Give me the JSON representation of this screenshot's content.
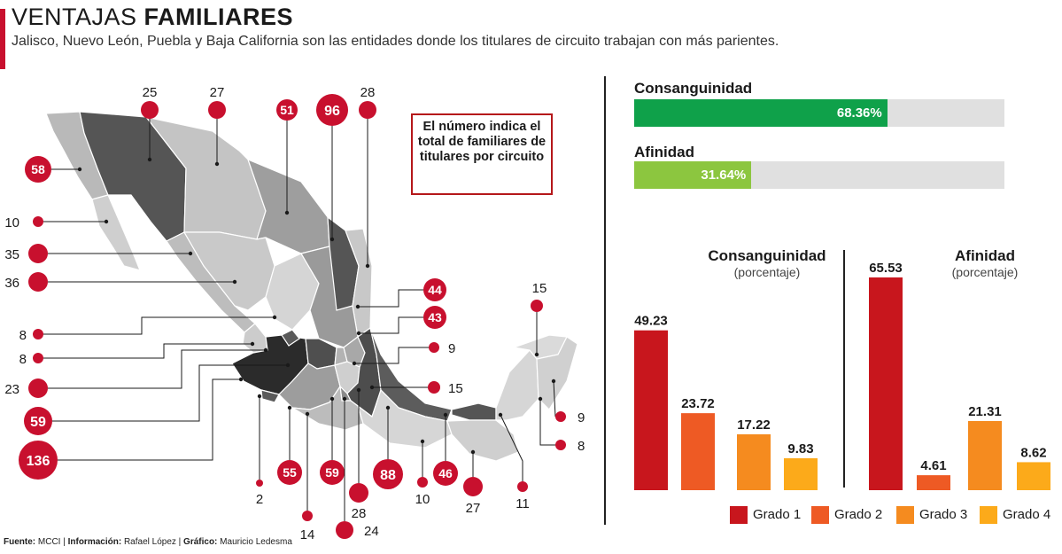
{
  "header": {
    "title_light": "VENTAJAS",
    "title_bold": "FAMILIARES",
    "subtitle": "Jalisco, Nuevo León, Puebla y Baja California son las entidades donde los titulares de circuito trabajan con más parientes."
  },
  "map": {
    "note": "El número indica el total de familiares de titulares por circuito",
    "marker_color": "#c8102e",
    "markers": [
      {
        "value": "25"
      },
      {
        "value": "27"
      },
      {
        "value": "51"
      },
      {
        "value": "96"
      },
      {
        "value": "28"
      },
      {
        "value": "58"
      },
      {
        "value": "10"
      },
      {
        "value": "35"
      },
      {
        "value": "36"
      },
      {
        "value": "8"
      },
      {
        "value": "8"
      },
      {
        "value": "23"
      },
      {
        "value": "59"
      },
      {
        "value": "136"
      },
      {
        "value": "2"
      },
      {
        "value": "55"
      },
      {
        "value": "14"
      },
      {
        "value": "59"
      },
      {
        "value": "28"
      },
      {
        "value": "24"
      },
      {
        "value": "88"
      },
      {
        "value": "10"
      },
      {
        "value": "46"
      },
      {
        "value": "27"
      },
      {
        "value": "11"
      },
      {
        "value": "44"
      },
      {
        "value": "43"
      },
      {
        "value": "9"
      },
      {
        "value": "15"
      },
      {
        "value": "15"
      },
      {
        "value": "9"
      },
      {
        "value": "8"
      }
    ]
  },
  "share": {
    "items": [
      {
        "label": "Consanguinidad",
        "value": 68.36,
        "value_text": "68.36%",
        "color": "#0fa14a"
      },
      {
        "label": "Afinidad",
        "value": 31.64,
        "value_text": "31.64%",
        "color": "#8cc63f"
      }
    ]
  },
  "chart_data": {
    "type": "bar",
    "categories": [
      "Grado 1",
      "Grado 2",
      "Grado 3",
      "Grado 4"
    ],
    "series": [
      {
        "name": "Consanguinidad",
        "subtitle": "(porcentaje)",
        "values": [
          49.23,
          23.72,
          17.22,
          9.83
        ]
      },
      {
        "name": "Afinidad",
        "subtitle": "(porcentaje)",
        "values": [
          65.53,
          4.61,
          21.31,
          8.62
        ]
      }
    ],
    "colors": [
      "#c8161d",
      "#ee5a24",
      "#f58b1f",
      "#fcaa1a"
    ],
    "ylim": [
      0,
      70
    ],
    "legend": "bottom"
  },
  "source": {
    "fuente_label": "Fuente:",
    "fuente": "MCCI",
    "info_label": "Información:",
    "info": "Rafael López",
    "grafico_label": "Gráfico:",
    "grafico": "Mauricio Ledesma"
  }
}
